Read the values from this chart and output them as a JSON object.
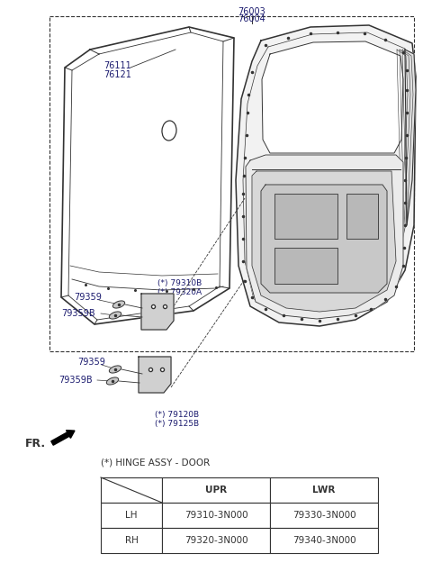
{
  "bg_color": "#ffffff",
  "line_color": "#333333",
  "label_color": "#1a1a6e",
  "table_title": "(*) HINGE ASSY - DOOR",
  "table_headers": [
    "",
    "UPR",
    "LWR"
  ],
  "table_rows": [
    [
      "LH",
      "79310-3N000",
      "79330-3N000"
    ],
    [
      "RH",
      "79320-3N000",
      "79340-3N000"
    ]
  ],
  "figsize": [
    4.8,
    6.35
  ],
  "dpi": 100
}
